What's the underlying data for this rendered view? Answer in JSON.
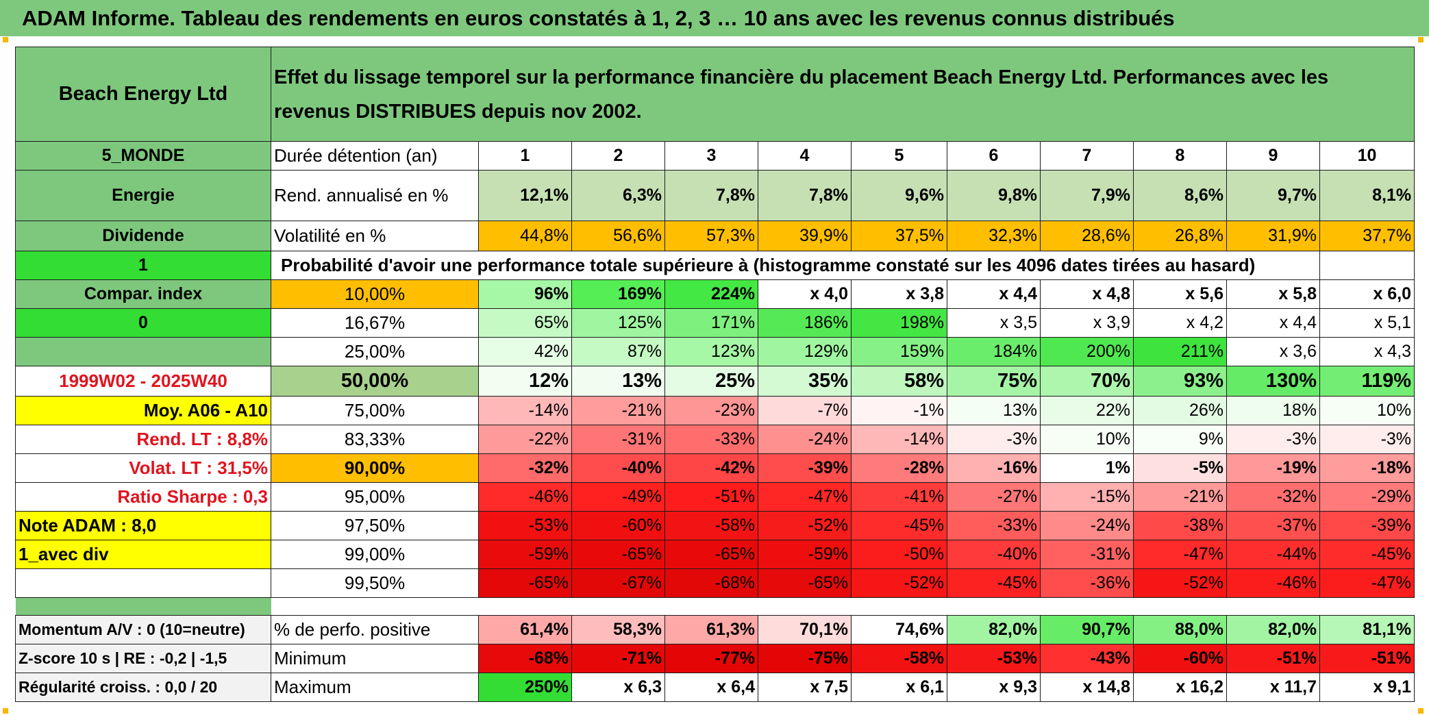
{
  "title": "ADAM Informe. Tableau des rendements en euros constatés à 1, 2, 3 … 10 ans avec les revenus connus distribués",
  "header": {
    "fund": "Beach Energy Ltd",
    "description": "Effet du lissage temporel sur la performance financière du placement Beach Energy Ltd. Performances avec les revenus DISTRIBUES depuis nov 2002."
  },
  "left": {
    "region": "5_MONDE",
    "sector": "Energie",
    "dividend": "Dividende",
    "flag1": "1",
    "compar": "Compar. index",
    "flag0": "0",
    "period": "1999W02 - 2025W40",
    "moy": "Moy. A06 - A10",
    "rend_lt": "Rend. LT :   8,8%",
    "volat_lt": "Volat. LT :   31,5%",
    "sharpe": "Ratio Sharpe :    0,3",
    "note": "Note ADAM : 8,0",
    "avec_div": "1_avec div",
    "momentum": "Momentum A/V : 0 (10=neutre)",
    "zscore": "Z-score 10 s | RE : -0,2 | -1,5",
    "regularite": "Régularité croiss. : 0,0 / 20"
  },
  "labels": {
    "duree": "Durée détention (an)",
    "rend": "Rend. annualisé en %",
    "vol": "Volatilité en %",
    "prob": "Probabilité d'avoir une performance totale supérieure à (histogramme constaté sur les 4096 dates tirées au hasard)",
    "perfo_pos": "% de perfo. positive",
    "minimum": "Minimum",
    "maximum": "Maximum"
  },
  "years": [
    "1",
    "2",
    "3",
    "4",
    "5",
    "6",
    "7",
    "8",
    "9",
    "10"
  ],
  "rend": [
    "12,1%",
    "6,3%",
    "7,8%",
    "7,8%",
    "9,6%",
    "9,8%",
    "7,9%",
    "8,6%",
    "9,7%",
    "8,1%"
  ],
  "vol": [
    "44,8%",
    "56,6%",
    "57,3%",
    "39,9%",
    "37,5%",
    "32,3%",
    "28,6%",
    "26,8%",
    "31,9%",
    "37,7%"
  ],
  "quantiles": [
    {
      "q": "10,00%",
      "vals": [
        "96%",
        "169%",
        "224%",
        "x 4,0",
        "x 3,8",
        "x 4,4",
        "x 4,8",
        "x 5,6",
        "x 5,8",
        "x 6,0"
      ]
    },
    {
      "q": "16,67%",
      "vals": [
        "65%",
        "125%",
        "171%",
        "186%",
        "198%",
        "x 3,5",
        "x 3,9",
        "x 4,2",
        "x 4,4",
        "x 5,1"
      ]
    },
    {
      "q": "25,00%",
      "vals": [
        "42%",
        "87%",
        "123%",
        "129%",
        "159%",
        "184%",
        "200%",
        "211%",
        "x 3,6",
        "x 4,3"
      ]
    },
    {
      "q": "50,00%",
      "vals": [
        "12%",
        "13%",
        "25%",
        "35%",
        "58%",
        "75%",
        "70%",
        "93%",
        "130%",
        "119%"
      ]
    },
    {
      "q": "75,00%",
      "vals": [
        "-14%",
        "-21%",
        "-23%",
        "-7%",
        "-1%",
        "13%",
        "22%",
        "26%",
        "18%",
        "10%"
      ]
    },
    {
      "q": "83,33%",
      "vals": [
        "-22%",
        "-31%",
        "-33%",
        "-24%",
        "-14%",
        "-3%",
        "10%",
        "9%",
        "-3%",
        "-3%"
      ]
    },
    {
      "q": "90,00%",
      "vals": [
        "-32%",
        "-40%",
        "-42%",
        "-39%",
        "-28%",
        "-16%",
        "1%",
        "-5%",
        "-19%",
        "-18%"
      ]
    },
    {
      "q": "95,00%",
      "vals": [
        "-46%",
        "-49%",
        "-51%",
        "-47%",
        "-41%",
        "-27%",
        "-15%",
        "-21%",
        "-32%",
        "-29%"
      ]
    },
    {
      "q": "97,50%",
      "vals": [
        "-53%",
        "-60%",
        "-58%",
        "-52%",
        "-45%",
        "-33%",
        "-24%",
        "-38%",
        "-37%",
        "-39%"
      ]
    },
    {
      "q": "99,00%",
      "vals": [
        "-59%",
        "-65%",
        "-65%",
        "-59%",
        "-50%",
        "-40%",
        "-31%",
        "-47%",
        "-44%",
        "-45%"
      ]
    },
    {
      "q": "99,50%",
      "vals": [
        "-65%",
        "-67%",
        "-68%",
        "-65%",
        "-52%",
        "-45%",
        "-36%",
        "-52%",
        "-46%",
        "-47%"
      ]
    }
  ],
  "perfo_pos": [
    "61,4%",
    "58,3%",
    "61,3%",
    "70,1%",
    "74,6%",
    "82,0%",
    "90,7%",
    "88,0%",
    "82,0%",
    "81,1%"
  ],
  "minimum": [
    "-68%",
    "-71%",
    "-77%",
    "-75%",
    "-58%",
    "-53%",
    "-43%",
    "-60%",
    "-51%",
    "-51%"
  ],
  "maximum": [
    "250%",
    "x 6,3",
    "x 6,4",
    "x 7,5",
    "x 6,1",
    "x 9,3",
    "x 14,8",
    "x 16,2",
    "x 11,7",
    "x 9,1"
  ],
  "colors": {
    "header_green": "#7ec87e",
    "bright_green": "#33dd33",
    "orange": "#ffbf00",
    "yellow": "#ffff00",
    "rend_green": "#c6e0b4",
    "label_red": "#e0141e"
  },
  "quantile_colors": [
    [
      "#a6f7a6",
      "#55ee55",
      "#44e844",
      "#ffffff",
      "#ffffff",
      "#ffffff",
      "#ffffff",
      "#ffffff",
      "#ffffff",
      "#ffffff"
    ],
    [
      "#c5fac5",
      "#a0f5a0",
      "#7ef07e",
      "#55ea55",
      "#44e644",
      "#ffffff",
      "#ffffff",
      "#ffffff",
      "#ffffff",
      "#ffffff"
    ],
    [
      "#e6fde6",
      "#c5fac5",
      "#a6f7a6",
      "#a0f5a0",
      "#86f186",
      "#6aed6a",
      "#50e850",
      "#3ee33e",
      "#ffffff",
      "#ffffff"
    ],
    [
      "#f2fef2",
      "#f0fdf0",
      "#e4fce4",
      "#d4fad4",
      "#bff7bf",
      "#a6f4a6",
      "#aef5ae",
      "#8cf08c",
      "#66eb66",
      "#74ed74"
    ],
    [
      "#ffb8b8",
      "#ff9c9c",
      "#ff9696",
      "#ffdada",
      "#fff3f3",
      "#f4fef4",
      "#e8fce8",
      "#e2fbe2",
      "#eefdee",
      "#f6fef6"
    ],
    [
      "#ff9a9a",
      "#ff7474",
      "#ff6d6d",
      "#ff9090",
      "#ffb8b8",
      "#ffecec",
      "#f6fef6",
      "#f8fef8",
      "#ffecec",
      "#ffecec"
    ],
    [
      "#ff6a6a",
      "#ff4c4c",
      "#ff4646",
      "#ff4d4d",
      "#ff7a7a",
      "#ffb0b0",
      "#ffffff",
      "#ffe0e0",
      "#ff9898",
      "#ff9c9c"
    ],
    [
      "#ff2a2a",
      "#ff2020",
      "#ff1c1c",
      "#ff2626",
      "#ff3c3c",
      "#ff7676",
      "#ffb0b0",
      "#ff9a9a",
      "#ff6e6e",
      "#ff7a7a"
    ],
    [
      "#f21010",
      "#f01010",
      "#f21414",
      "#f61c1c",
      "#ff2c2c",
      "#ff5c5c",
      "#ff8a8a",
      "#ff4a4a",
      "#ff5050",
      "#ff4848"
    ],
    [
      "#ea0c0c",
      "#e80a0a",
      "#e80a0a",
      "#ee0e0e",
      "#fb1c1c",
      "#ff3a3a",
      "#ff6060",
      "#ff2a2a",
      "#ff2e2e",
      "#ff2c2c"
    ],
    [
      "#e40808",
      "#e20808",
      "#e20808",
      "#e60a0a",
      "#f71616",
      "#fc2222",
      "#ff4c4c",
      "#f71616",
      "#fb1c1c",
      "#fb1c1c"
    ]
  ],
  "perfo_colors": [
    "#ffa8a8",
    "#ffbcbc",
    "#ffa8a8",
    "#ffdcdc",
    "#ffffff",
    "#a2f4a2",
    "#66ec66",
    "#84f084",
    "#a2f4a2",
    "#b6f6b6"
  ],
  "min_colors": [
    "#e80a0a",
    "#e60808",
    "#e40606",
    "#e40606",
    "#f21212",
    "#f61818",
    "#ff3030",
    "#f01010",
    "#f81a1a",
    "#f81a1a"
  ],
  "max_colors": [
    "#33dd33",
    "#ffffff",
    "#ffffff",
    "#ffffff",
    "#ffffff",
    "#ffffff",
    "#ffffff",
    "#ffffff",
    "#ffffff",
    "#ffffff"
  ]
}
